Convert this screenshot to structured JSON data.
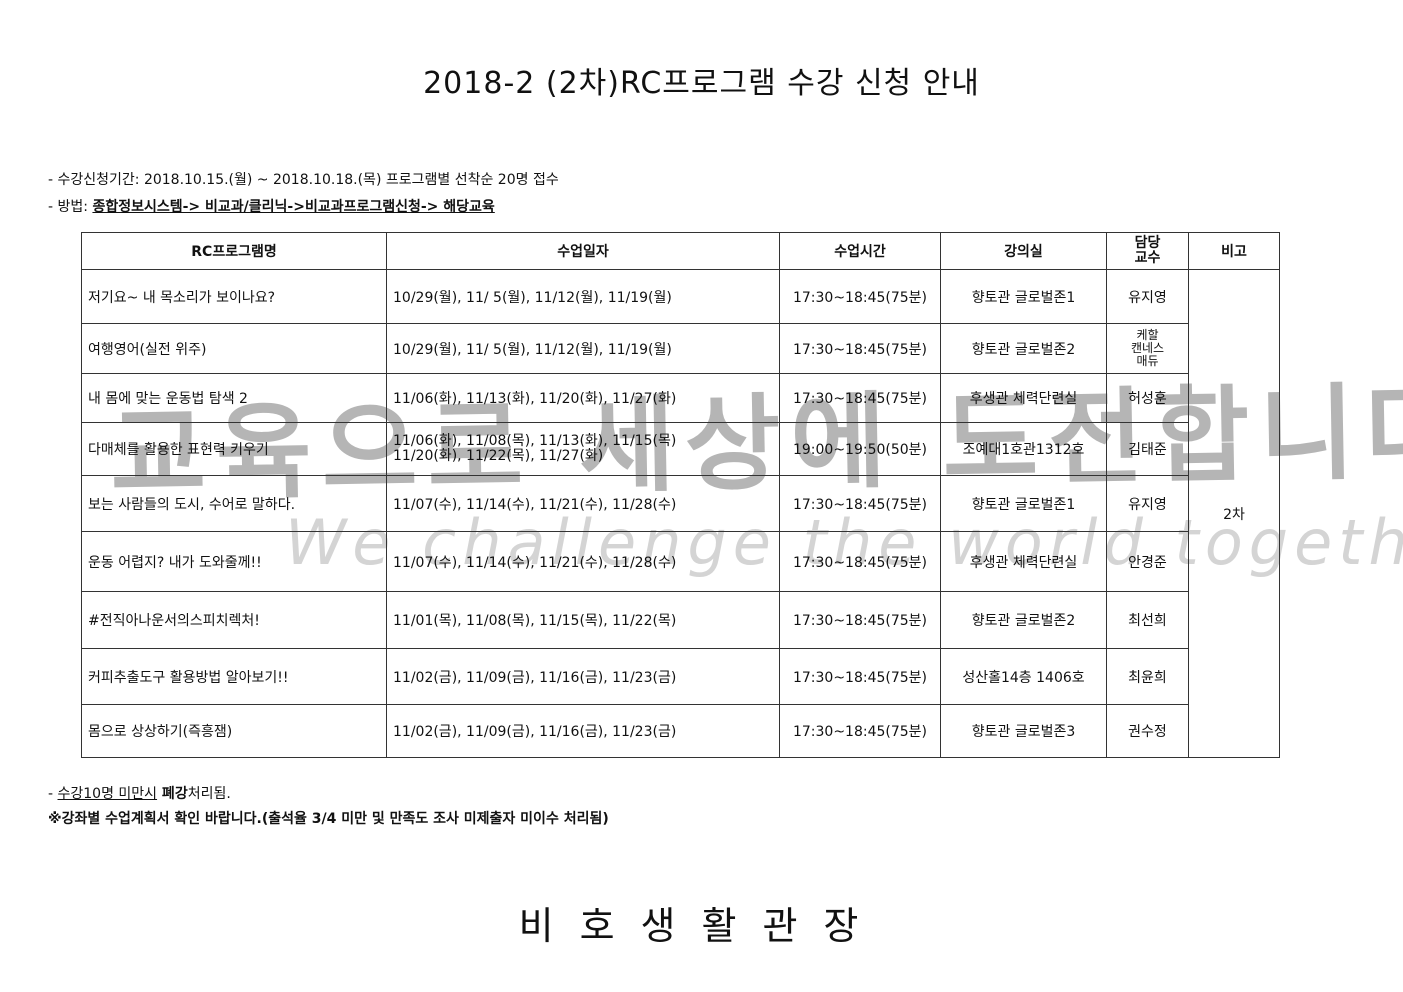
{
  "title": "2018-2 (2차)RC프로그램 수강 신청 안내",
  "info": {
    "period": "- 수강신청기간: 2018.10.15.(월) ~ 2018.10.18.(목) 프로그램별 선착순 20명 접수",
    "method_label": "- 방법: ",
    "method_path": "종합정보시스템-> 비교과/클리닉->비교과프로그램신청-> 해당교육"
  },
  "table": {
    "headers": [
      "RC프로그램명",
      "수업일자",
      "수업시간",
      "강의실",
      "담당\n교수",
      "비고"
    ],
    "remark": "2차",
    "rows": [
      {
        "name": "저기요~ 내 목소리가 보이나요?",
        "dates": "10/29(월), 11/ 5(월), 11/12(월), 11/19(월)",
        "time": "17:30~18:45(75분)",
        "room": "향토관 글로벌존1",
        "prof": "유지영"
      },
      {
        "name": "여행영어(실전 위주)",
        "dates": "10/29(월), 11/ 5(월), 11/12(월), 11/19(월)",
        "time": "17:30~18:45(75분)",
        "room": "향토관 글로벌존2",
        "prof": "케할\n캔네스\n매듀"
      },
      {
        "name": "내 몸에 맞는 운동법 탐색 2",
        "dates": "11/06(화), 11/13(화), 11/20(화), 11/27(화)",
        "time": "17:30~18:45(75분)",
        "room": "후생관 체력단련실",
        "prof": "허성훈"
      },
      {
        "name": "다매체를 활용한 표현력 키우기",
        "dates": "11/06(화), 11/08(목), 11/13(화), 11/15(목)\n11/20(화), 11/22(목), 11/27(화)",
        "time": "19:00~19:50(50분)",
        "room": "조예대1호관1312호",
        "prof": "김태준"
      },
      {
        "name": "보는 사람들의 도시, 수어로 말하다.",
        "dates": "11/07(수), 11/14(수), 11/21(수), 11/28(수)",
        "time": "17:30~18:45(75분)",
        "room": "향토관 글로벌존1",
        "prof": "유지영"
      },
      {
        "name": "운동 어렵지? 내가 도와줄께!!",
        "dates": "11/07(수), 11/14(수), 11/21(수), 11/28(수)",
        "time": "17:30~18:45(75분)",
        "room": "후생관 체력단련실",
        "prof": "안경준"
      },
      {
        "name": "#전직아나운서의스피치렉처!",
        "dates": "11/01(목), 11/08(목), 11/15(목), 11/22(목)",
        "time": "17:30~18:45(75분)",
        "room": "향토관 글로벌존2",
        "prof": "최선희"
      },
      {
        "name": "커피추출도구 활용방법 알아보기!!",
        "dates": "11/02(금), 11/09(금), 11/16(금), 11/23(금)",
        "time": "17:30~18:45(75분)",
        "room": "성산홀14층 1406호",
        "prof": "최윤희"
      },
      {
        "name": "몸으로 상상하기(즉흥잼)",
        "dates": "11/02(금), 11/09(금), 11/16(금), 11/23(금)",
        "time": "17:30~18:45(75분)",
        "room": "향토관 글로벌존3",
        "prof": "권수정"
      }
    ]
  },
  "notes": {
    "dash": "- ",
    "min_underlined": "수강10명 미만시",
    "min_bold": " 폐강",
    "min_rest": "처리됨.",
    "plan": "※강좌별 수업계획서 확인 바랍니다.(출석율 3/4 미만 및 만족도 조사 미제출자 미이수 처리됨)"
  },
  "watermark": {
    "korean": "교육으로 세상에 도전합니다",
    "english": "We challenge the world together"
  },
  "footer": "비호생활관장"
}
